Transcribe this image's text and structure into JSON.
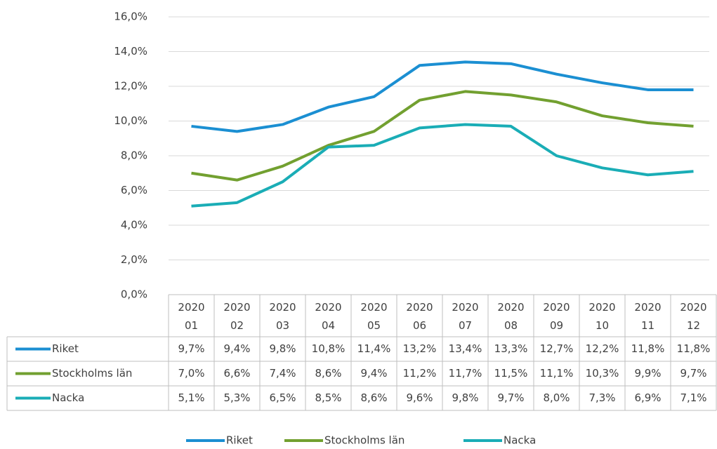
{
  "chart_data": {
    "type": "line",
    "categories": [
      "2020 01",
      "2020 02",
      "2020 03",
      "2020 04",
      "2020 05",
      "2020 06",
      "2020 07",
      "2020 08",
      "2020 09",
      "2020 10",
      "2020 11",
      "2020 12"
    ],
    "series": [
      {
        "name": "Riket",
        "color": "#1b8fd2",
        "values": [
          9.7,
          9.4,
          9.8,
          10.8,
          11.4,
          13.2,
          13.4,
          13.3,
          12.7,
          12.2,
          11.8,
          11.8
        ],
        "value_labels": [
          "9,7%",
          "9,4%",
          "9,8%",
          "10,8%",
          "11,4%",
          "13,2%",
          "13,4%",
          "13,3%",
          "12,7%",
          "12,2%",
          "11,8%",
          "11,8%"
        ]
      },
      {
        "name": "Stockholms län",
        "color": "#72a030",
        "values": [
          7.0,
          6.6,
          7.4,
          8.6,
          9.4,
          11.2,
          11.7,
          11.5,
          11.1,
          10.3,
          9.9,
          9.7
        ],
        "value_labels": [
          "7,0%",
          "6,6%",
          "7,4%",
          "8,6%",
          "9,4%",
          "11,2%",
          "11,7%",
          "11,5%",
          "11,1%",
          "10,3%",
          "9,9%",
          "9,7%"
        ]
      },
      {
        "name": "Nacka",
        "color": "#1aadb6",
        "values": [
          5.1,
          5.3,
          6.5,
          8.5,
          8.6,
          9.6,
          9.8,
          9.7,
          8.0,
          7.3,
          6.9,
          7.1
        ],
        "value_labels": [
          "5,1%",
          "5,3%",
          "6,5%",
          "8,5%",
          "8,6%",
          "9,6%",
          "9,8%",
          "9,7%",
          "8,0%",
          "7,3%",
          "6,9%",
          "7,1%"
        ]
      }
    ],
    "ylim": [
      0,
      16
    ],
    "yticks": [
      {
        "value": 0,
        "label": "0,0%"
      },
      {
        "value": 2,
        "label": "2,0%"
      },
      {
        "value": 4,
        "label": "4,0%"
      },
      {
        "value": 6,
        "label": "6,0%"
      },
      {
        "value": 8,
        "label": "8,0%"
      },
      {
        "value": 10,
        "label": "10,0%"
      },
      {
        "value": 12,
        "label": "12,0%"
      },
      {
        "value": 14,
        "label": "14,0%"
      },
      {
        "value": 16,
        "label": "16,0%"
      }
    ],
    "grid": true,
    "legend": "bottom"
  }
}
